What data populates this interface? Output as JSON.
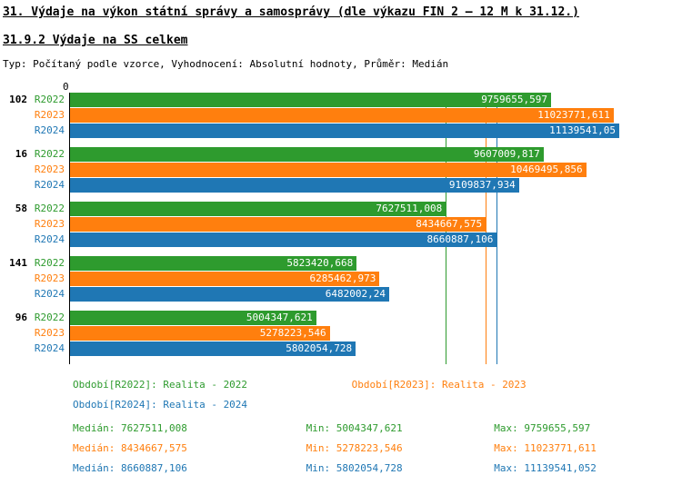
{
  "chart_data": {
    "type": "bar",
    "orientation": "horizontal",
    "title": "31. Výdaje na výkon státní správy a samosprávy (dle výkazu FIN 2 – 12 M k 31.12.)",
    "subtitle": "31.9.2 Výdaje na SS celkem",
    "meta": "Typ: Počítaný podle vzorce, Vyhodnocení: Absolutní hodnoty, Průměr: Medián",
    "categories": [
      "102",
      "16",
      "58",
      "141",
      "96"
    ],
    "series": [
      {
        "name": "R2022",
        "color": "#2e9b2e",
        "legend": "Období[R2022]: Realita - 2022",
        "values": [
          9759655.597,
          9607009.817,
          7627511.008,
          5823420.668,
          5004347.621
        ],
        "value_labels": [
          "9759655,597",
          "9607009,817",
          "7627511,008",
          "5823420,668",
          "5004347,621"
        ],
        "median": 7627511.008,
        "stats": {
          "median": "Medián: 7627511,008",
          "min": "Min: 5004347,621",
          "max": "Max: 9759655,597"
        }
      },
      {
        "name": "R2023",
        "color": "#ff7f0e",
        "legend": "Období[R2023]: Realita - 2023",
        "values": [
          11023771.611,
          10469495.856,
          8434667.575,
          6285462.973,
          5278223.546
        ],
        "value_labels": [
          "11023771,611",
          "10469495,856",
          "8434667,575",
          "6285462,973",
          "5278223,546"
        ],
        "median": 8434667.575,
        "stats": {
          "median": "Medián: 8434667,575",
          "min": "Min: 5278223,546",
          "max": "Max: 11023771,611"
        }
      },
      {
        "name": "R2024",
        "color": "#1f77b4",
        "legend": "Období[R2024]: Realita - 2024",
        "values": [
          11139541.052,
          9109837.934,
          8660887.106,
          6482002.24,
          5802054.728
        ],
        "value_labels": [
          "11139541,05",
          "9109837,934",
          "8660887,106",
          "6482002,24",
          "5802054,728"
        ],
        "median": 8660887.106,
        "stats": {
          "median": "Medián: 8660887,106",
          "min": "Min: 5802054,728",
          "max": "Max: 11139541,052"
        }
      }
    ],
    "x_axis": {
      "origin_label": "0",
      "max": 11139541.052
    },
    "grid": false,
    "legend_position": "bottom",
    "background": "#ffffff"
  }
}
